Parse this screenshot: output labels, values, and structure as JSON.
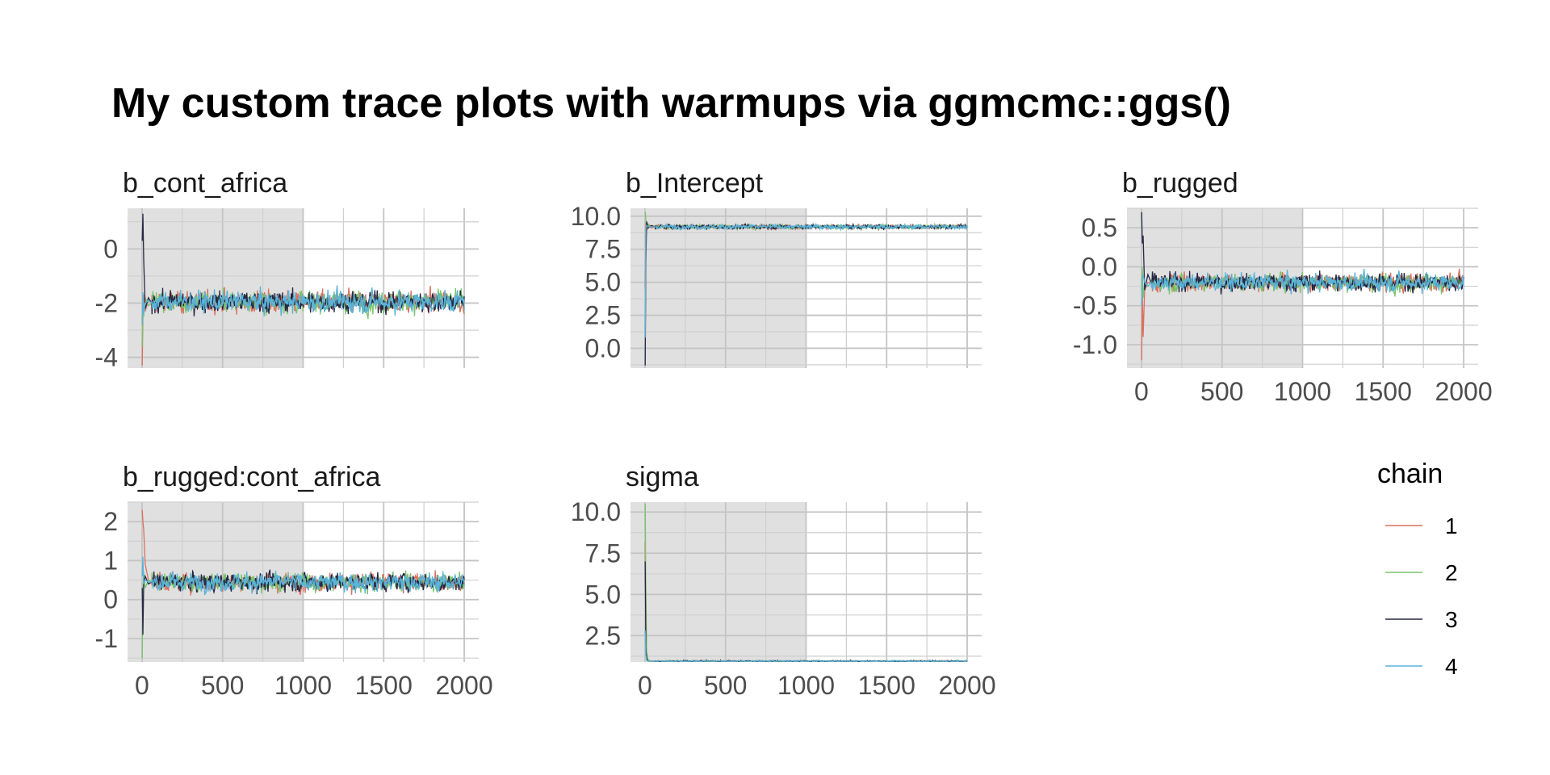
{
  "title": "My custom trace plots with warmups via ggmcmc::ggs()",
  "chart_data": {
    "type": "line",
    "title": "My custom trace plots with warmups via ggmcmc::ggs()",
    "xlabel": "",
    "ylabel": "",
    "grid": true,
    "warmup_shading": {
      "from": 0,
      "to": 1000,
      "color": "#e0e0e0"
    },
    "legend": {
      "title": "chain",
      "position": "bottom-right",
      "entries": [
        {
          "label": "1",
          "color": "#d9705f"
        },
        {
          "label": "2",
          "color": "#78c46a"
        },
        {
          "label": "3",
          "color": "#262744"
        },
        {
          "label": "4",
          "color": "#5ab3d8"
        }
      ]
    },
    "x_ticks": [
      0,
      500,
      1000,
      1500,
      2000
    ],
    "xlim": [
      0,
      2000
    ],
    "panels": [
      {
        "name": "b_cont_africa",
        "ylim": [
          -4.4,
          1.5
        ],
        "y_ticks": [
          0,
          -2,
          -4
        ],
        "y_tick_labels": [
          "0",
          "-2",
          "-4"
        ],
        "show_x_labels": false,
        "init": [
          {
            "x": [
              1,
              5,
              10,
              20,
              40,
              60
            ],
            "y": [
              -4.3,
              -2.6,
              -1.7,
              -2.3,
              -1.9,
              -2.0
            ]
          },
          {
            "x": [
              1,
              5,
              10,
              20,
              40,
              60
            ],
            "y": [
              -3.6,
              -2.2,
              -2.5,
              -1.8,
              -2.1,
              -2.0
            ]
          },
          {
            "x": [
              1,
              5,
              10,
              20,
              40,
              60
            ],
            "y": [
              0.3,
              1.3,
              -0.4,
              -2.2,
              -1.8,
              -2.0
            ]
          },
          {
            "x": [
              1,
              5,
              10,
              20,
              40,
              60
            ],
            "y": [
              -2.8,
              -1.6,
              -2.4,
              -2.0,
              -1.9,
              -2.0
            ]
          }
        ],
        "stationary": {
          "mean": -1.95,
          "spread": 0.28
        }
      },
      {
        "name": "b_Intercept",
        "ylim": [
          -1.5,
          10.6
        ],
        "y_ticks": [
          0,
          2.5,
          5,
          7.5,
          10
        ],
        "y_tick_labels": [
          "0.0",
          "2.5",
          "5.0",
          "7.5",
          "10.0"
        ],
        "show_x_labels": false,
        "init": [
          {
            "x": [
              1,
              5,
              10,
              20,
              40,
              60
            ],
            "y": [
              4.5,
              9.5,
              8.9,
              9.3,
              9.1,
              9.2
            ]
          },
          {
            "x": [
              1,
              5,
              10,
              20,
              40,
              60
            ],
            "y": [
              10.3,
              9.8,
              9.1,
              9.4,
              9.2,
              9.2
            ]
          },
          {
            "x": [
              1,
              5,
              10,
              20,
              40,
              60
            ],
            "y": [
              -1.3,
              6.5,
              9.6,
              9.1,
              9.3,
              9.2
            ]
          },
          {
            "x": [
              1,
              5,
              10,
              20,
              40,
              60
            ],
            "y": [
              0.8,
              9.1,
              9.3,
              9.2,
              9.2,
              9.2
            ]
          }
        ],
        "stationary": {
          "mean": 9.2,
          "spread": 0.12
        }
      },
      {
        "name": "b_rugged",
        "ylim": [
          -1.3,
          0.75
        ],
        "y_ticks": [
          0.5,
          0,
          -0.5,
          -1.0
        ],
        "y_tick_labels": [
          "0.5",
          "0.0",
          "-0.5",
          "-1.0"
        ],
        "show_x_labels": true,
        "init": [
          {
            "x": [
              1,
              5,
              10,
              20,
              40,
              60
            ],
            "y": [
              -1.2,
              -0.3,
              -0.9,
              -0.3,
              -0.2,
              -0.2
            ]
          },
          {
            "x": [
              1,
              5,
              10,
              20,
              40,
              60
            ],
            "y": [
              -0.3,
              0.0,
              -0.4,
              -0.2,
              -0.25,
              -0.2
            ]
          },
          {
            "x": [
              1,
              5,
              10,
              20,
              40,
              60
            ],
            "y": [
              0.7,
              0.3,
              0.4,
              -0.3,
              -0.1,
              -0.2
            ]
          },
          {
            "x": [
              1,
              5,
              10,
              20,
              40,
              60
            ],
            "y": [
              -0.5,
              -0.2,
              -0.1,
              -0.2,
              -0.25,
              -0.2
            ]
          }
        ],
        "stationary": {
          "mean": -0.2,
          "spread": 0.08
        }
      },
      {
        "name": "b_rugged:cont_africa",
        "ylim": [
          -1.6,
          2.5
        ],
        "y_ticks": [
          2,
          1,
          0,
          -1
        ],
        "y_tick_labels": [
          "2",
          "1",
          "0",
          "-1"
        ],
        "show_x_labels": true,
        "init": [
          {
            "x": [
              1,
              5,
              10,
              20,
              40,
              60
            ],
            "y": [
              2.3,
              2.0,
              1.8,
              0.9,
              0.5,
              0.45
            ]
          },
          {
            "x": [
              1,
              5,
              10,
              20,
              40,
              60
            ],
            "y": [
              -1.5,
              0.2,
              0.7,
              0.3,
              0.5,
              0.45
            ]
          },
          {
            "x": [
              1,
              5,
              10,
              20,
              40,
              60
            ],
            "y": [
              0.3,
              -0.9,
              0.4,
              0.6,
              0.4,
              0.45
            ]
          },
          {
            "x": [
              1,
              5,
              10,
              20,
              40,
              60
            ],
            "y": [
              0.6,
              1.1,
              0.4,
              0.5,
              0.45,
              0.45
            ]
          }
        ],
        "stationary": {
          "mean": 0.45,
          "spread": 0.17
        }
      },
      {
        "name": "sigma",
        "ylim": [
          0.9,
          10.6
        ],
        "y_ticks": [
          2.5,
          5,
          7.5,
          10
        ],
        "y_tick_labels": [
          "2.5",
          "5.0",
          "7.5",
          "10.0"
        ],
        "show_x_labels": true,
        "init": [
          {
            "x": [
              1,
              5,
              10,
              20,
              40,
              60
            ],
            "y": [
              8.2,
              3.0,
              1.2,
              1.0,
              0.95,
              0.95
            ]
          },
          {
            "x": [
              1,
              5,
              10,
              20,
              40,
              60
            ],
            "y": [
              10.5,
              5.5,
              1.5,
              1.0,
              0.95,
              0.95
            ]
          },
          {
            "x": [
              1,
              5,
              10,
              20,
              40,
              60
            ],
            "y": [
              7.0,
              1.8,
              1.1,
              0.95,
              0.95,
              0.95
            ]
          },
          {
            "x": [
              1,
              5,
              10,
              20,
              40,
              60
            ],
            "y": [
              2.8,
              1.3,
              1.0,
              0.95,
              0.95,
              0.95
            ]
          }
        ],
        "stationary": {
          "mean": 0.95,
          "spread": 0.03
        }
      }
    ]
  }
}
